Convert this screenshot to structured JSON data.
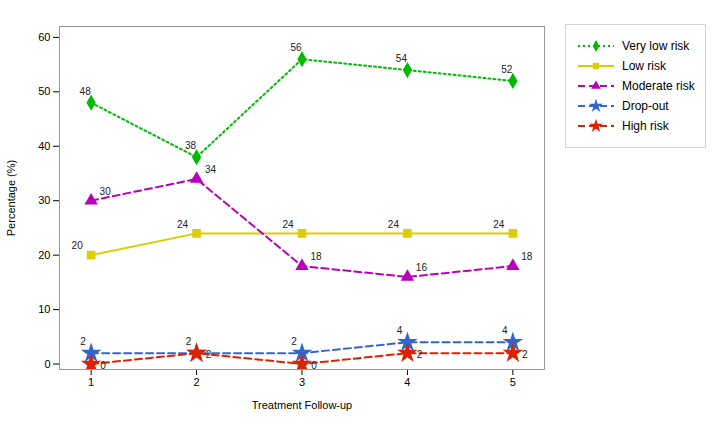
{
  "chart_data": {
    "type": "line",
    "xlabel": "Treatment Follow-up",
    "ylabel": "Percentage (%)",
    "x": [
      1,
      2,
      3,
      4,
      5
    ],
    "xlim": [
      0.7,
      5.3
    ],
    "xticks": [
      1,
      2,
      3,
      4,
      5
    ],
    "ylim": [
      -1,
      62
    ],
    "yticks": [
      0,
      10,
      20,
      30,
      40,
      50,
      60
    ],
    "grid": false,
    "legend": "right",
    "data_labels": true,
    "series": [
      {
        "name": "Very low risk",
        "color": "#00bb00",
        "marker": "diamond",
        "line_style": "dotted",
        "values": [
          48,
          38,
          56,
          54,
          52
        ]
      },
      {
        "name": "Low risk",
        "color": "#ddcc00",
        "marker": "square",
        "line_style": "solid",
        "values": [
          20,
          24,
          24,
          24,
          24
        ]
      },
      {
        "name": "Moderate risk",
        "color": "#bb00bb",
        "marker": "triangle",
        "line_style": "dashed",
        "values": [
          30,
          34,
          18,
          16,
          18
        ]
      },
      {
        "name": "Drop-out",
        "color": "#3366cc",
        "marker": "star",
        "line_style": "dashed",
        "values": [
          2,
          2,
          2,
          4,
          4
        ]
      },
      {
        "name": "High risk",
        "color": "#dd2200",
        "marker": "star",
        "line_style": "dashed",
        "values": [
          0,
          2,
          0,
          2,
          2
        ]
      }
    ]
  }
}
